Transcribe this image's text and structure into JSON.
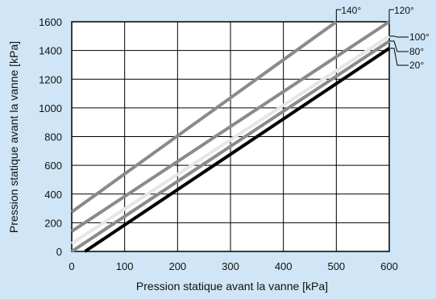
{
  "chart_data": {
    "type": "line",
    "xlabel": "Pression statique avant la vanne [kPa]",
    "ylabel": "Pression statique avant la vanne [kPa]",
    "xlim": [
      0,
      600
    ],
    "ylim": [
      0,
      1600
    ],
    "xticks": [
      0,
      100,
      200,
      300,
      400,
      500,
      600
    ],
    "yticks": [
      0,
      200,
      400,
      600,
      800,
      1000,
      1200,
      1400,
      1600
    ],
    "grid": true,
    "series": [
      {
        "name": "140°",
        "color": "#8a8a8a",
        "x": [
          0,
          500
        ],
        "y": [
          275,
          1600
        ]
      },
      {
        "name": "120°",
        "color": "#8a8a8a",
        "x": [
          0,
          600
        ],
        "y": [
          140,
          1600
        ]
      },
      {
        "name": "100°",
        "color": "#e6e6e6",
        "x": [
          0,
          600
        ],
        "y": [
          55,
          1500
        ]
      },
      {
        "name": "80°",
        "color": "#8a8a8a",
        "x": [
          0,
          600
        ],
        "y": [
          0,
          1465
        ]
      },
      {
        "name": "20°",
        "color": "#000000",
        "x": [
          25,
          600
        ],
        "y": [
          0,
          1415
        ]
      }
    ]
  }
}
